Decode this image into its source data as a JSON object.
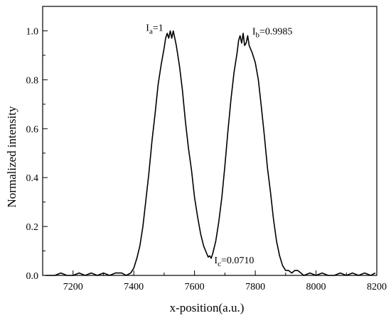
{
  "chart_data": {
    "type": "line",
    "title": "",
    "xlabel": "x-position(a.u.)",
    "ylabel": "Normalized intensity",
    "xlim": [
      7100,
      8200
    ],
    "ylim": [
      0.0,
      1.1
    ],
    "x_ticks": [
      7200,
      7400,
      7600,
      7800,
      8000,
      8200
    ],
    "y_ticks": [
      0.0,
      0.2,
      0.4,
      0.6,
      0.8,
      1.0
    ],
    "x_tick_labels": [
      "7200",
      "7400",
      "7600",
      "7800",
      "8000",
      "8200"
    ],
    "y_tick_labels": [
      "0.0",
      "0.2",
      "0.4",
      "0.6",
      "0.8",
      "1.0"
    ],
    "grid": false,
    "legend": "none",
    "line_color": "#000000",
    "series": [
      {
        "points": [
          [
            7110,
            0.0
          ],
          [
            7140,
            0.0
          ],
          [
            7160,
            0.01
          ],
          [
            7180,
            0.0
          ],
          [
            7200,
            0.0
          ],
          [
            7220,
            0.01
          ],
          [
            7240,
            0.0
          ],
          [
            7260,
            0.01
          ],
          [
            7280,
            0.0
          ],
          [
            7300,
            0.01
          ],
          [
            7320,
            0.0
          ],
          [
            7340,
            0.01
          ],
          [
            7360,
            0.01
          ],
          [
            7375,
            0.0
          ],
          [
            7390,
            0.01
          ],
          [
            7400,
            0.03
          ],
          [
            7410,
            0.07
          ],
          [
            7420,
            0.12
          ],
          [
            7430,
            0.2
          ],
          [
            7440,
            0.31
          ],
          [
            7450,
            0.42
          ],
          [
            7460,
            0.55
          ],
          [
            7470,
            0.66
          ],
          [
            7480,
            0.78
          ],
          [
            7490,
            0.86
          ],
          [
            7500,
            0.93
          ],
          [
            7505,
            0.97
          ],
          [
            7510,
            0.99
          ],
          [
            7515,
            0.97
          ],
          [
            7520,
            1.0
          ],
          [
            7525,
            0.97
          ],
          [
            7530,
            1.0
          ],
          [
            7535,
            0.97
          ],
          [
            7540,
            0.94
          ],
          [
            7550,
            0.86
          ],
          [
            7560,
            0.76
          ],
          [
            7570,
            0.63
          ],
          [
            7580,
            0.52
          ],
          [
            7590,
            0.43
          ],
          [
            7600,
            0.32
          ],
          [
            7610,
            0.24
          ],
          [
            7620,
            0.17
          ],
          [
            7630,
            0.12
          ],
          [
            7640,
            0.09
          ],
          [
            7645,
            0.075
          ],
          [
            7650,
            0.08
          ],
          [
            7655,
            0.07
          ],
          [
            7660,
            0.09
          ],
          [
            7670,
            0.14
          ],
          [
            7680,
            0.22
          ],
          [
            7690,
            0.32
          ],
          [
            7700,
            0.45
          ],
          [
            7710,
            0.59
          ],
          [
            7720,
            0.72
          ],
          [
            7730,
            0.83
          ],
          [
            7740,
            0.91
          ],
          [
            7745,
            0.96
          ],
          [
            7750,
            0.98
          ],
          [
            7755,
            0.95
          ],
          [
            7760,
            0.99
          ],
          [
            7765,
            0.94
          ],
          [
            7770,
            0.95
          ],
          [
            7775,
            0.98
          ],
          [
            7780,
            0.94
          ],
          [
            7790,
            0.91
          ],
          [
            7800,
            0.87
          ],
          [
            7810,
            0.8
          ],
          [
            7820,
            0.69
          ],
          [
            7830,
            0.57
          ],
          [
            7840,
            0.44
          ],
          [
            7850,
            0.34
          ],
          [
            7860,
            0.23
          ],
          [
            7870,
            0.14
          ],
          [
            7880,
            0.08
          ],
          [
            7890,
            0.04
          ],
          [
            7900,
            0.02
          ],
          [
            7910,
            0.02
          ],
          [
            7920,
            0.01
          ],
          [
            7930,
            0.02
          ],
          [
            7940,
            0.02
          ],
          [
            7950,
            0.01
          ],
          [
            7960,
            0.0
          ],
          [
            7980,
            0.01
          ],
          [
            8000,
            0.0
          ],
          [
            8020,
            0.01
          ],
          [
            8040,
            0.0
          ],
          [
            8060,
            0.0
          ],
          [
            8080,
            0.01
          ],
          [
            8100,
            0.0
          ],
          [
            8120,
            0.01
          ],
          [
            8140,
            0.0
          ],
          [
            8160,
            0.01
          ],
          [
            8180,
            0.0
          ],
          [
            8195,
            0.01
          ]
        ]
      }
    ],
    "annotations": [
      {
        "main": "I",
        "sub": "a",
        "tail": "=1",
        "x": 7440,
        "y": 1.0
      },
      {
        "main": "I",
        "sub": "b",
        "tail": "=0.9985",
        "x": 7790,
        "y": 0.985
      },
      {
        "main": "I",
        "sub": "c",
        "tail": "=0.0710",
        "x": 7665,
        "y": 0.05
      }
    ]
  }
}
